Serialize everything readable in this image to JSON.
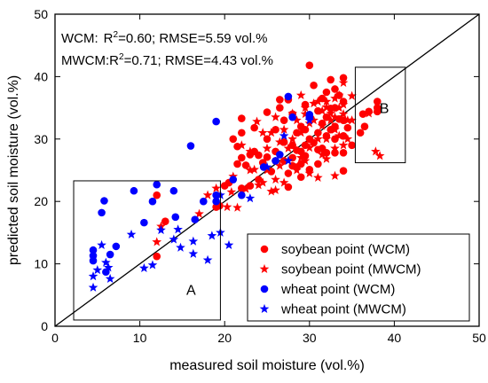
{
  "chart_data": {
    "type": "scatter",
    "xlabel": "measured soil moisture (vol.%)",
    "ylabel": "predicted soil moisture (vol.%)",
    "xlim": [
      0,
      50
    ],
    "ylim": [
      0,
      50
    ],
    "xticks": [
      0,
      10,
      20,
      30,
      40,
      50
    ],
    "yticks": [
      0,
      10,
      20,
      30,
      40,
      50
    ],
    "grid": false,
    "legend_position": "bottom-right",
    "one_to_one_line": true,
    "stats": {
      "wcm": {
        "label": "WCM:",
        "r2_prefix": "R",
        "r2_text": "=0.60; RMSE=5.59 vol.%"
      },
      "mwcm": {
        "label": "MWCM:",
        "r2_prefix": "R",
        "r2_text": "=0.71; RMSE=4.43 vol.%"
      }
    },
    "annotations": [
      {
        "label": "A",
        "x_range": [
          2.2,
          19.5
        ],
        "y_range": [
          1,
          23.3
        ]
      },
      {
        "label": "B",
        "x_range": [
          35.4,
          41.3
        ],
        "y_range": [
          26.2,
          41.5
        ]
      }
    ],
    "series": [
      {
        "name": "soybean point (WCM)",
        "marker": "circle",
        "color": "#ff0000",
        "points": [
          [
            12,
            21
          ],
          [
            12,
            11.2
          ],
          [
            13,
            16.8
          ],
          [
            19,
            19.1
          ],
          [
            19.4,
            19.3
          ],
          [
            20,
            22.5
          ],
          [
            20.5,
            23
          ],
          [
            21,
            30
          ],
          [
            21.5,
            26
          ],
          [
            21.5,
            28.8
          ],
          [
            22,
            33.3
          ],
          [
            22,
            31
          ],
          [
            22,
            27
          ],
          [
            22,
            22.1
          ],
          [
            22.5,
            25.8
          ],
          [
            23,
            27.5
          ],
          [
            23,
            22.5
          ],
          [
            23.5,
            28
          ],
          [
            23.5,
            31.8
          ],
          [
            24,
            27.4
          ],
          [
            24,
            23.5
          ],
          [
            24.5,
            26.2
          ],
          [
            25,
            34.3
          ],
          [
            25,
            30
          ],
          [
            25,
            27.1
          ],
          [
            25.5,
            24.8
          ],
          [
            26,
            31.5
          ],
          [
            26,
            28
          ],
          [
            26,
            26.5
          ],
          [
            26.5,
            35
          ],
          [
            26.5,
            36.3
          ],
          [
            27,
            33
          ],
          [
            27,
            29.5
          ],
          [
            27,
            26.5
          ],
          [
            27.5,
            24.5
          ],
          [
            27.5,
            22.3
          ],
          [
            27.5,
            36.3
          ],
          [
            28,
            34
          ],
          [
            28,
            29
          ],
          [
            28,
            27
          ],
          [
            28,
            25.7
          ],
          [
            28.5,
            31
          ],
          [
            28.5,
            28.2
          ],
          [
            28.5,
            25.5
          ],
          [
            29,
            32
          ],
          [
            29,
            28
          ],
          [
            29,
            26
          ],
          [
            29,
            23.9
          ],
          [
            29.5,
            35.5
          ],
          [
            29.5,
            31.5
          ],
          [
            29.5,
            29
          ],
          [
            29.5,
            27.3
          ],
          [
            30,
            41.8
          ],
          [
            30,
            33.5
          ],
          [
            30,
            30
          ],
          [
            30,
            25.1
          ],
          [
            30.5,
            38.6
          ],
          [
            30.5,
            29.4
          ],
          [
            31,
            34.5
          ],
          [
            31,
            31
          ],
          [
            31,
            28.3
          ],
          [
            31,
            26
          ],
          [
            31.5,
            36.5
          ],
          [
            31.5,
            32.5
          ],
          [
            31.5,
            28.5
          ],
          [
            32,
            37.5
          ],
          [
            32,
            33.5
          ],
          [
            32,
            30.5
          ],
          [
            32,
            27.8
          ],
          [
            32.5,
            39.5
          ],
          [
            32.5,
            34.9
          ],
          [
            32.5,
            31.5
          ],
          [
            33,
            38
          ],
          [
            33,
            35
          ],
          [
            33,
            32
          ],
          [
            33,
            30
          ],
          [
            33,
            27.8
          ],
          [
            33.5,
            37
          ],
          [
            33.5,
            33.2
          ],
          [
            34,
            39.8
          ],
          [
            34,
            36
          ],
          [
            34,
            33
          ],
          [
            34,
            30.5
          ],
          [
            34,
            27.8
          ],
          [
            34,
            24.9
          ],
          [
            34.5,
            31.8
          ],
          [
            35,
            29
          ],
          [
            36.3,
            34
          ],
          [
            36.5,
            32
          ],
          [
            37,
            34.4
          ],
          [
            38,
            36
          ],
          [
            38,
            35
          ],
          [
            38,
            34.4
          ],
          [
            36,
            31
          ]
        ]
      },
      {
        "name": "soybean point (MWCM)",
        "marker": "star",
        "color": "#ff0000",
        "points": [
          [
            12,
            13.5
          ],
          [
            12.5,
            16
          ],
          [
            17,
            18
          ],
          [
            18,
            21
          ],
          [
            19,
            22.1
          ],
          [
            20.3,
            19.1
          ],
          [
            20.8,
            21.5
          ],
          [
            21,
            24
          ],
          [
            21.5,
            19
          ],
          [
            22,
            29
          ],
          [
            22.5,
            22
          ],
          [
            23,
            25
          ],
          [
            23,
            28
          ],
          [
            23.5,
            25.1
          ],
          [
            23.8,
            32.8
          ],
          [
            24,
            22.6
          ],
          [
            24.5,
            31
          ],
          [
            24.5,
            23
          ],
          [
            25,
            25
          ],
          [
            25,
            28.5
          ],
          [
            25.5,
            31
          ],
          [
            25.5,
            21.6
          ],
          [
            26,
            33.5
          ],
          [
            26,
            23.5
          ],
          [
            26.5,
            29.5
          ],
          [
            26.5,
            25.7
          ],
          [
            27,
            31.5
          ],
          [
            27,
            23
          ],
          [
            27.5,
            28.5
          ],
          [
            28,
            34.1
          ],
          [
            28,
            30
          ],
          [
            28.5,
            33
          ],
          [
            28.5,
            25
          ],
          [
            29,
            37
          ],
          [
            29,
            31
          ],
          [
            29,
            27
          ],
          [
            29.5,
            35
          ],
          [
            29.5,
            34
          ],
          [
            29.5,
            26.5
          ],
          [
            30,
            32.5
          ],
          [
            30,
            28.6
          ],
          [
            30,
            24.5
          ],
          [
            30.5,
            35.7
          ],
          [
            30.5,
            33
          ],
          [
            31,
            36
          ],
          [
            31,
            30
          ],
          [
            31,
            23.8
          ],
          [
            31.5,
            34.5
          ],
          [
            31.5,
            32.1
          ],
          [
            31.5,
            27.5
          ],
          [
            32,
            36
          ],
          [
            32,
            35.1
          ],
          [
            32,
            30
          ],
          [
            32,
            26.8
          ],
          [
            32.5,
            34.1
          ],
          [
            32.5,
            33
          ],
          [
            33,
            36.5
          ],
          [
            33,
            33.5
          ],
          [
            33,
            31.5
          ],
          [
            33,
            28.5
          ],
          [
            33.5,
            37
          ],
          [
            33.5,
            35
          ],
          [
            33.5,
            30.5
          ],
          [
            34,
            35.5
          ],
          [
            34,
            34
          ],
          [
            34,
            29
          ],
          [
            34.5,
            33
          ],
          [
            34.5,
            30
          ],
          [
            35,
            36.9
          ],
          [
            35,
            33
          ],
          [
            34,
            39
          ],
          [
            37,
            34.1
          ],
          [
            38.3,
            27.3
          ],
          [
            37.8,
            28
          ],
          [
            33,
            24.1
          ],
          [
            26,
            21.8
          ]
        ]
      },
      {
        "name": "wheat point (WCM)",
        "marker": "circle",
        "color": "#0000ff",
        "points": [
          [
            4.5,
            12.2
          ],
          [
            4.5,
            11.3
          ],
          [
            4.5,
            10.5
          ],
          [
            5.5,
            18.2
          ],
          [
            5.8,
            20.1
          ],
          [
            6,
            8.7
          ],
          [
            6.5,
            11.5
          ],
          [
            7.2,
            12.8
          ],
          [
            9.3,
            21.7
          ],
          [
            10.5,
            16.6
          ],
          [
            11.5,
            20
          ],
          [
            12,
            22.7
          ],
          [
            14,
            21.7
          ],
          [
            14.2,
            17.5
          ],
          [
            16,
            28.9
          ],
          [
            16.5,
            17.1
          ],
          [
            17.5,
            20
          ],
          [
            19,
            21
          ],
          [
            19,
            20
          ],
          [
            19,
            32.8
          ],
          [
            21,
            23.5
          ],
          [
            22,
            21
          ],
          [
            24.6,
            25.5
          ],
          [
            26,
            26.5
          ],
          [
            26.5,
            27.5
          ],
          [
            27.5,
            36.8
          ],
          [
            28,
            33.5
          ],
          [
            30,
            33.9
          ],
          [
            30,
            33.5
          ]
        ]
      },
      {
        "name": "wheat point (MWCM)",
        "marker": "star",
        "color": "#0000ff",
        "points": [
          [
            4.5,
            8
          ],
          [
            4.5,
            6.2
          ],
          [
            5,
            9
          ],
          [
            5.5,
            13
          ],
          [
            6,
            10.2
          ],
          [
            6.3,
            9.4
          ],
          [
            6.5,
            7.6
          ],
          [
            9,
            14.7
          ],
          [
            10.5,
            9.3
          ],
          [
            11.5,
            9.8
          ],
          [
            12.5,
            15.4
          ],
          [
            14,
            13.9
          ],
          [
            14.5,
            15.5
          ],
          [
            14.8,
            12.6
          ],
          [
            16.3,
            11.6
          ],
          [
            16.3,
            13.6
          ],
          [
            18,
            10.6
          ],
          [
            18.5,
            14.5
          ],
          [
            19.5,
            15
          ],
          [
            20.5,
            13
          ],
          [
            23,
            20.5
          ],
          [
            25,
            25.5
          ],
          [
            27,
            30.5
          ],
          [
            27.5,
            26.5
          ],
          [
            30,
            33
          ],
          [
            19.5,
            21
          ]
        ]
      }
    ]
  }
}
